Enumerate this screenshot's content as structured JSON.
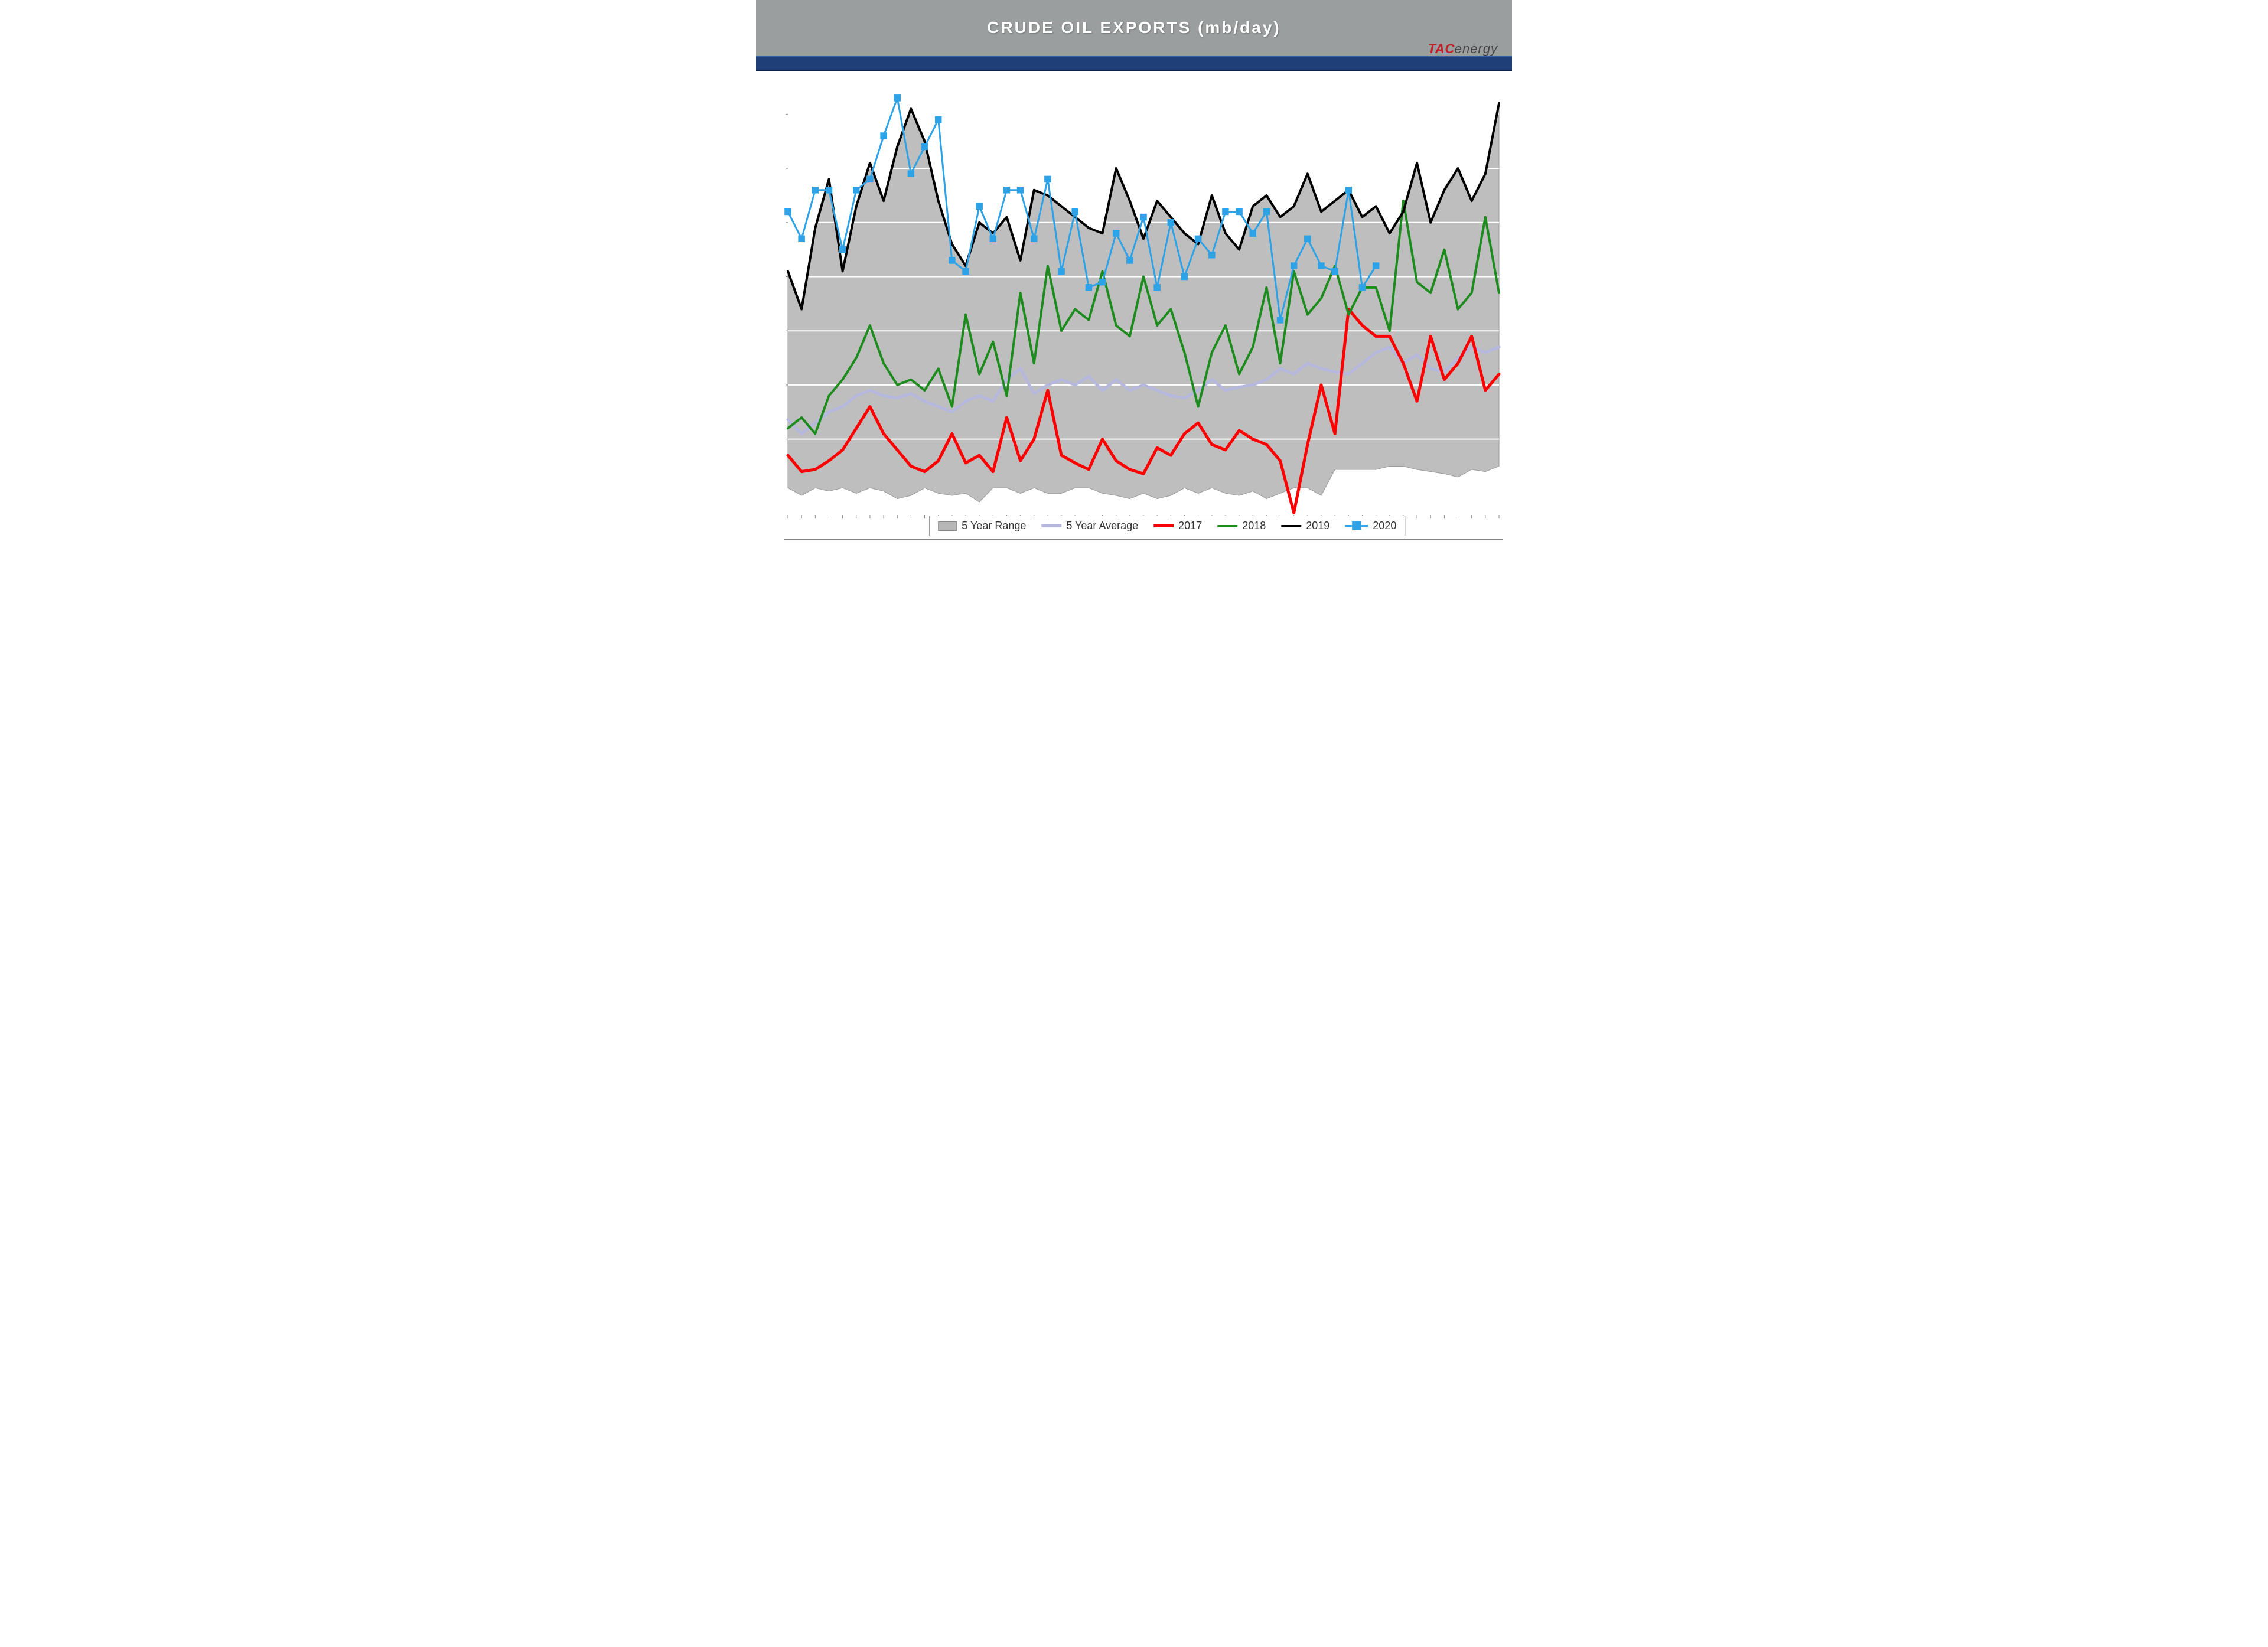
{
  "header": {
    "title": "CRUDE OIL EXPORTS (mb/day)",
    "title_color": "#ffffff",
    "bar_color": "#9b9e9f",
    "blue_strip_color": "#1f3f78"
  },
  "logo": {
    "tac": "TAC",
    "energy": "energy"
  },
  "chart": {
    "type": "line+area",
    "background_color": "#ffffff",
    "grid_color": "#ffffff",
    "axis_color": "#888888",
    "y_min": 0.3,
    "y_max": 4.4,
    "y_gridlines": [
      1.0,
      1.5,
      2.0,
      2.5,
      3.0,
      3.5,
      4.0
    ],
    "n_weeks": 53,
    "range_area": {
      "fill": "#b7b7b7",
      "low": [
        0.55,
        0.48,
        0.55,
        0.52,
        0.55,
        0.5,
        0.55,
        0.52,
        0.45,
        0.48,
        0.55,
        0.5,
        0.48,
        0.5,
        0.42,
        0.55,
        0.55,
        0.5,
        0.55,
        0.5,
        0.5,
        0.55,
        0.55,
        0.5,
        0.48,
        0.45,
        0.5,
        0.45,
        0.48,
        0.55,
        0.5,
        0.55,
        0.5,
        0.48,
        0.52,
        0.45,
        0.5,
        0.55,
        0.55,
        0.48,
        0.72,
        0.72,
        0.72,
        0.72,
        0.75,
        0.75,
        0.72,
        0.7,
        0.68,
        0.65,
        0.72,
        0.7,
        0.75
      ],
      "high": [
        2.55,
        2.2,
        2.95,
        3.4,
        2.55,
        3.15,
        3.55,
        3.2,
        3.7,
        4.05,
        3.75,
        3.2,
        2.8,
        2.6,
        3.0,
        2.9,
        3.05,
        2.65,
        3.3,
        3.25,
        3.15,
        3.05,
        2.95,
        2.9,
        3.5,
        3.2,
        2.85,
        3.2,
        3.05,
        2.9,
        2.8,
        3.25,
        2.9,
        2.75,
        3.15,
        3.25,
        3.05,
        3.15,
        3.45,
        3.1,
        3.2,
        3.3,
        3.05,
        3.15,
        2.9,
        3.1,
        3.55,
        3.0,
        3.3,
        3.5,
        3.2,
        3.45,
        4.1
      ]
    },
    "series": [
      {
        "name": "5 Year Average",
        "color": "#b6b7dd",
        "width": 5,
        "values": [
          1.18,
          1.05,
          1.15,
          1.25,
          1.3,
          1.4,
          1.45,
          1.4,
          1.38,
          1.42,
          1.35,
          1.3,
          1.25,
          1.35,
          1.4,
          1.35,
          1.55,
          1.65,
          1.42,
          1.5,
          1.55,
          1.5,
          1.58,
          1.45,
          1.55,
          1.45,
          1.5,
          1.45,
          1.4,
          1.38,
          1.45,
          1.55,
          1.45,
          1.48,
          1.5,
          1.55,
          1.65,
          1.6,
          1.7,
          1.65,
          1.62,
          1.6,
          1.7,
          1.8,
          1.85,
          1.7,
          1.78,
          1.65,
          1.62,
          1.75,
          1.85,
          1.8,
          1.85
        ],
        "markers": false
      },
      {
        "name": "2017",
        "color": "#ff0000",
        "width": 5,
        "values": [
          0.85,
          0.7,
          0.72,
          0.8,
          0.9,
          1.1,
          1.3,
          1.05,
          0.9,
          0.75,
          0.7,
          0.8,
          1.05,
          0.78,
          0.85,
          0.7,
          1.2,
          0.8,
          1.0,
          1.45,
          0.85,
          0.78,
          0.72,
          1.0,
          0.8,
          0.72,
          0.68,
          0.92,
          0.85,
          1.05,
          1.15,
          0.95,
          0.9,
          1.08,
          1.0,
          0.95,
          0.8,
          0.32,
          0.95,
          1.5,
          1.05,
          2.2,
          2.05,
          1.95,
          1.95,
          1.7,
          1.35,
          1.95,
          1.55,
          1.7,
          1.95,
          1.45,
          1.6
        ],
        "markers": false
      },
      {
        "name": "2018",
        "color": "#1e8b1e",
        "width": 4,
        "values": [
          1.1,
          1.2,
          1.05,
          1.4,
          1.55,
          1.75,
          2.05,
          1.7,
          1.5,
          1.55,
          1.45,
          1.65,
          1.3,
          2.15,
          1.6,
          1.9,
          1.4,
          2.35,
          1.7,
          2.6,
          2.0,
          2.2,
          2.1,
          2.55,
          2.05,
          1.95,
          2.5,
          2.05,
          2.2,
          1.8,
          1.3,
          1.8,
          2.05,
          1.6,
          1.85,
          2.4,
          1.7,
          2.55,
          2.15,
          2.3,
          2.6,
          2.15,
          2.4,
          2.4,
          2.0,
          3.2,
          2.45,
          2.35,
          2.75,
          2.2,
          2.35,
          3.05,
          2.35
        ],
        "markers": false
      },
      {
        "name": "2019",
        "color": "#000000",
        "width": 4,
        "values": [
          2.55,
          2.2,
          2.95,
          3.4,
          2.55,
          3.15,
          3.55,
          3.2,
          3.7,
          4.05,
          3.75,
          3.2,
          2.8,
          2.6,
          3.0,
          2.9,
          3.05,
          2.65,
          3.3,
          3.25,
          3.15,
          3.05,
          2.95,
          2.9,
          3.5,
          3.2,
          2.85,
          3.2,
          3.05,
          2.9,
          2.8,
          3.25,
          2.9,
          2.75,
          3.15,
          3.25,
          3.05,
          3.15,
          3.45,
          3.1,
          3.2,
          3.3,
          3.05,
          3.15,
          2.9,
          3.1,
          3.55,
          3.0,
          3.3,
          3.5,
          3.2,
          3.45,
          4.1
        ],
        "markers": false
      },
      {
        "name": "2020",
        "color": "#2ea2e6",
        "width": 3,
        "values": [
          3.1,
          2.85,
          3.3,
          3.3,
          2.75,
          3.3,
          3.4,
          3.8,
          4.15,
          3.45,
          3.7,
          3.95,
          2.65,
          2.55,
          3.15,
          2.85,
          3.3,
          3.3,
          2.85,
          3.4,
          2.55,
          3.1,
          2.4,
          2.45,
          2.9,
          2.65,
          3.05,
          2.4,
          3.0,
          2.5,
          2.85,
          2.7,
          3.1,
          3.1,
          2.9,
          3.1,
          2.1,
          2.6,
          2.85,
          2.6,
          2.55,
          3.3,
          2.4,
          2.6
        ],
        "markers": true,
        "marker_size": 10
      }
    ],
    "legend": {
      "items": [
        {
          "label": "5 Year Range",
          "kind": "range"
        },
        {
          "label": "5 Year Average",
          "kind": "avg"
        },
        {
          "label": "2017",
          "kind": "2017"
        },
        {
          "label": "2018",
          "kind": "2018"
        },
        {
          "label": "2019",
          "kind": "2019"
        },
        {
          "label": "2020",
          "kind": "2020"
        }
      ]
    }
  }
}
